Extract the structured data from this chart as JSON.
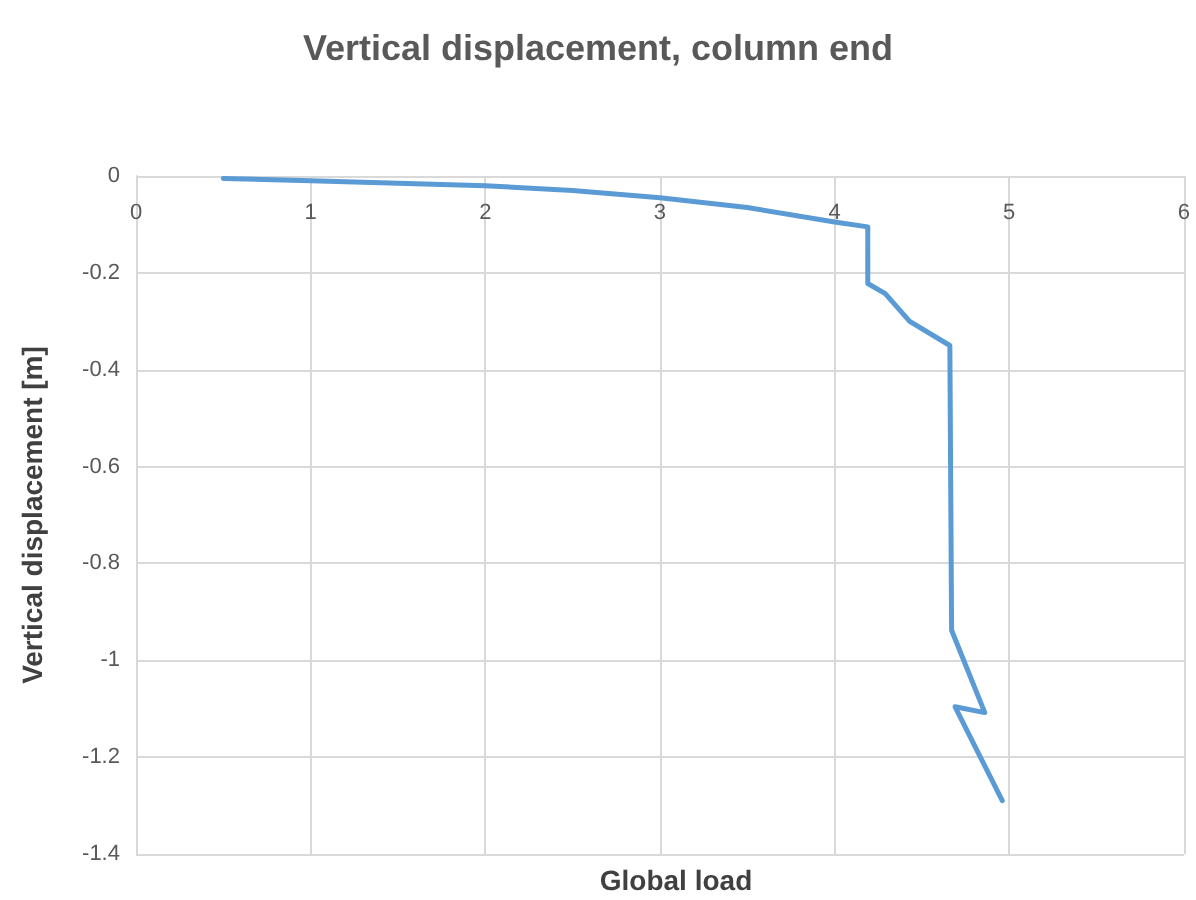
{
  "chart_data": {
    "type": "line",
    "title": "Vertical displacement, column end",
    "xlabel": "Global load",
    "ylabel": "Vertical displacement [m]",
    "series": [
      {
        "color": "#5b9bd5",
        "x": [
          0.5,
          1,
          1.5,
          2,
          2.5,
          3,
          3.5,
          4,
          4.19,
          4.19,
          4.29,
          4.43,
          4.66,
          4.67,
          4.86,
          4.69,
          4.96
        ],
        "values": [
          -0.005,
          -0.01,
          -0.015,
          -0.02,
          -0.03,
          -0.045,
          -0.065,
          -0.095,
          -0.105,
          -0.222,
          -0.243,
          -0.3,
          -0.35,
          -0.938,
          -1.108,
          -1.096,
          -1.29
        ]
      }
    ],
    "xlim": [
      0,
      6
    ],
    "xticks": [
      0,
      1,
      2,
      3,
      4,
      5,
      6
    ],
    "ylim": [
      -1.4,
      0
    ],
    "yticks": [
      -1.4,
      -1.2,
      -1,
      -0.8,
      -0.6,
      -0.4,
      -0.2,
      0
    ],
    "grid": true,
    "marker": "none",
    "line_style": "solid"
  }
}
